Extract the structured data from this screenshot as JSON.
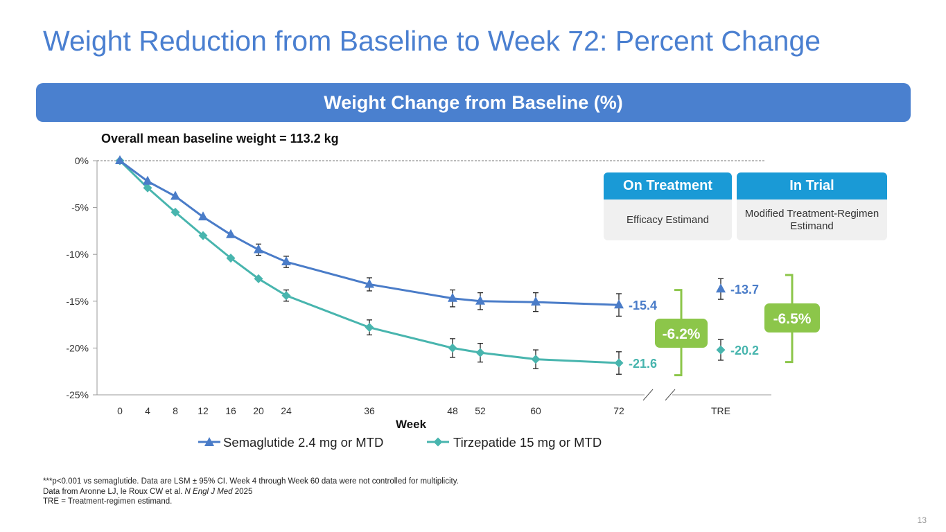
{
  "title": "Weight Reduction from Baseline to Week 72: Percent Change",
  "banner": "Weight Change from Baseline (%)",
  "subtitle": "Overall mean baseline weight = 113.2 kg",
  "boxes": [
    {
      "header": "On Treatment",
      "body": "Efficacy Estimand"
    },
    {
      "header": "In Trial",
      "body": "Modified Treatment-Regimen Estimand"
    }
  ],
  "footnotes": [
    "***p<0.001 vs semaglutide. Data are LSM ± 95% CI. Week 4 through Week 60 data were not controlled for multiplicity.",
    "Data from Aronne LJ, le Roux CW et al. ",
    "N Engl J Med",
    " 2025",
    "TRE = Treatment-regimen estimand."
  ],
  "page_number": "13",
  "colors": {
    "sema": "#4a7cc8",
    "tirz": "#48b5ae",
    "diff": "#8cc64a",
    "title": "#4a7fd0",
    "banner": "#4a80cf",
    "box_header": "#1a9ad6"
  },
  "chart_data": {
    "type": "line",
    "xlabel": "Week",
    "ylabel": "",
    "ylim": [
      -25,
      0
    ],
    "yticks": [
      0,
      -5,
      -10,
      -15,
      -20,
      -25
    ],
    "ytick_labels": [
      "0%",
      "-5%",
      "-10%",
      "-15%",
      "-20%",
      "-25%"
    ],
    "x": [
      0,
      4,
      8,
      12,
      16,
      20,
      24,
      36,
      48,
      52,
      60,
      72
    ],
    "xtick_labels": [
      "0",
      "4",
      "8",
      "12",
      "16",
      "20",
      "24",
      "36",
      "48",
      "52",
      "60",
      "72"
    ],
    "extra_category": "TRE",
    "series": [
      {
        "name": "Semaglutide 2.4 mg or MTD",
        "marker": "triangle",
        "color": "#4a7cc8",
        "values": [
          0,
          -2.2,
          -3.8,
          -6.0,
          -7.9,
          -9.5,
          -10.8,
          -13.2,
          -14.7,
          -15.0,
          -15.1,
          -15.4
        ],
        "ci": [
          null,
          null,
          null,
          null,
          null,
          0.6,
          0.6,
          0.7,
          0.9,
          0.9,
          1.0,
          1.2
        ],
        "end_label": "-15.4",
        "tre_value": -13.7,
        "tre_ci": 1.1,
        "tre_label": "-13.7"
      },
      {
        "name": "Tirzepatide 15 mg or MTD",
        "marker": "diamond",
        "color": "#48b5ae",
        "values": [
          0,
          -2.9,
          -5.5,
          -8.0,
          -10.4,
          -12.6,
          -14.4,
          -17.8,
          -20.0,
          -20.5,
          -21.2,
          -21.6
        ],
        "ci": [
          null,
          null,
          null,
          null,
          null,
          null,
          0.6,
          0.8,
          1.0,
          1.0,
          1.0,
          1.2
        ],
        "end_label": "-21.6",
        "tre_value": -20.2,
        "tre_ci": 1.1,
        "tre_label": "-20.2"
      }
    ],
    "differences": [
      {
        "label": "-6.2%",
        "position": "week 72"
      },
      {
        "label": "-6.5%",
        "position": "TRE"
      }
    ],
    "reference_line": 0,
    "legend": "bottom-center"
  }
}
